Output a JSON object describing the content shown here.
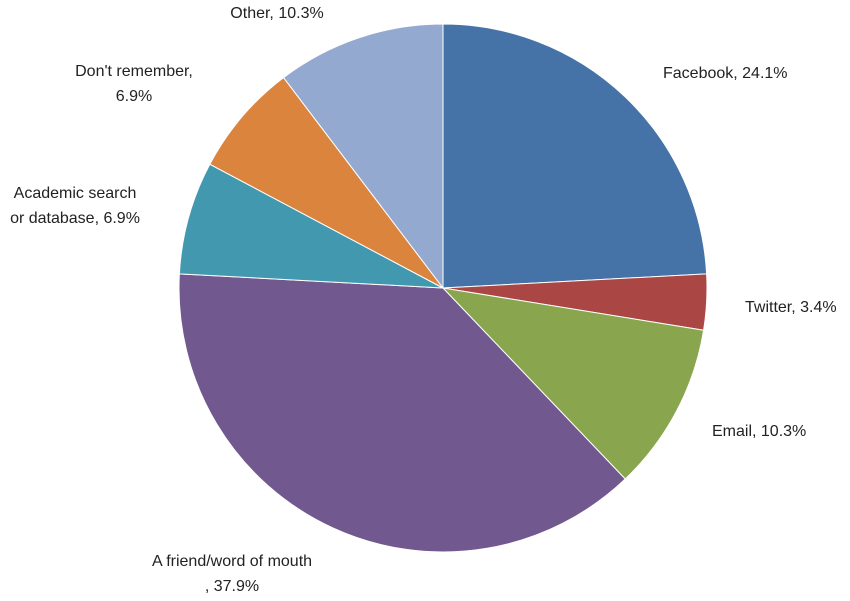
{
  "chart_data": {
    "type": "pie",
    "title": "",
    "start_angle_deg": 0,
    "direction": "clockwise",
    "slices": [
      {
        "label": "Facebook",
        "value": 24.1,
        "display": "Facebook, 24.1%",
        "color": "#4572A7"
      },
      {
        "label": "Twitter",
        "value": 3.4,
        "display": "Twitter, 3.4%",
        "color": "#AA4643"
      },
      {
        "label": "Email",
        "value": 10.3,
        "display": "Email, 10.3%",
        "color": "#89A54E"
      },
      {
        "label": "A friend/word of mouth",
        "value": 37.9,
        "display": "A friend/word of mouth, 37.9%",
        "color": "#71588F"
      },
      {
        "label": "Academic search or database",
        "value": 6.9,
        "display": "Academic search or database, 6.9%",
        "color": "#4198AF"
      },
      {
        "label": "Don't remember",
        "value": 6.9,
        "display": "Don't remember, 6.9%",
        "color": "#DB843D"
      },
      {
        "label": "Other",
        "value": 10.3,
        "display": "Other, 10.3%",
        "color": "#93A9CF"
      }
    ],
    "slice_border_color": "#ffffff"
  }
}
